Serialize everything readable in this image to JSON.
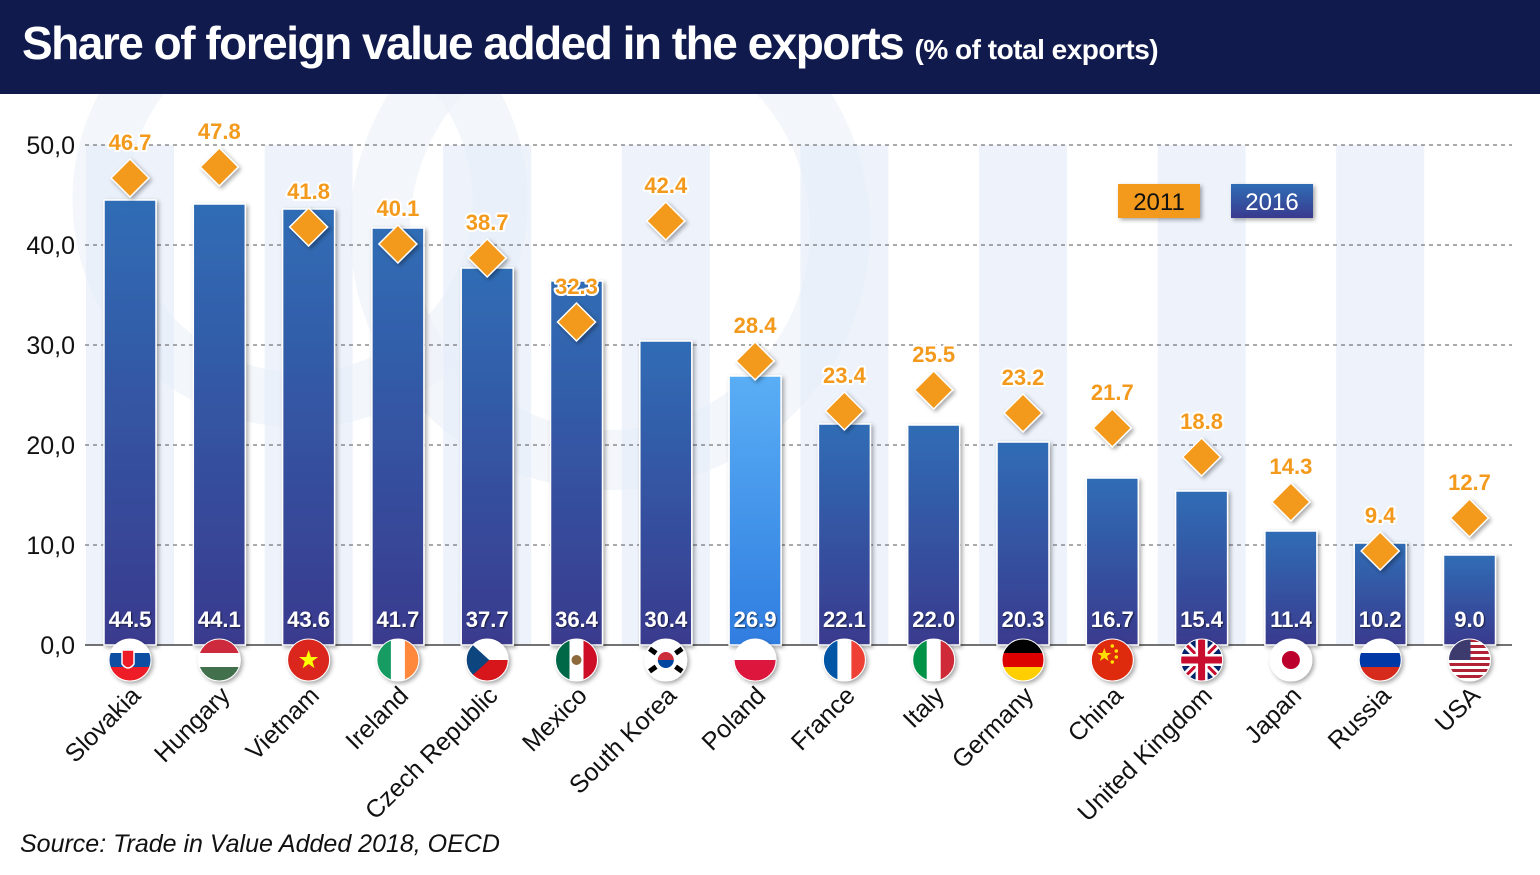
{
  "header": {
    "title": "Share of foreign value added in the exports",
    "subtitle": "(% of total exports)"
  },
  "source": "Source: Trade in Value Added 2018, OECD",
  "colors": {
    "header_bg": "#101a4d",
    "bar_top": "#2f6db5",
    "bar_bottom": "#3a3a8e",
    "bar_highlight_top": "#5aaef5",
    "bar_highlight_bottom": "#2f7de0",
    "marker": "#f39a1c",
    "stripe": "#e7eefa"
  },
  "chart_data": {
    "type": "bar",
    "categories": [
      "Slovakia",
      "Hungary",
      "Vietnam",
      "Ireland",
      "Czech Republic",
      "Mexico",
      "South Korea",
      "Poland",
      "France",
      "Italy",
      "Germany",
      "China",
      "United Kingdom",
      "Japan",
      "Russia",
      "USA"
    ],
    "series": [
      {
        "name": "2016",
        "type": "bar",
        "values": [
          44.5,
          44.1,
          43.6,
          41.7,
          37.7,
          36.4,
          30.4,
          26.9,
          22.1,
          22.0,
          20.3,
          16.7,
          15.4,
          11.4,
          10.2,
          9.0
        ]
      },
      {
        "name": "2011",
        "type": "marker",
        "values": [
          46.7,
          47.8,
          41.8,
          40.1,
          38.7,
          32.3,
          42.4,
          28.4,
          23.4,
          25.5,
          23.2,
          21.7,
          18.8,
          14.3,
          9.4,
          12.7
        ]
      }
    ],
    "bar_labels": [
      "44.5",
      "44.1",
      "43.6",
      "41.7",
      "37.7",
      "36.4",
      "30.4",
      "26.9",
      "22.1",
      "22.0",
      "20.3",
      "16.7",
      "15.4",
      "11.4",
      "10.2",
      "9.0"
    ],
    "marker_labels": [
      "46.7",
      "47.8",
      "41.8",
      "40.1",
      "38.7",
      "32.3",
      "42.4",
      "28.4",
      "23.4",
      "25.5",
      "23.2",
      "21.7",
      "18.8",
      "14.3",
      "9.4",
      "12.7"
    ],
    "ytick_labels": [
      "0,0",
      "10,0",
      "20,0",
      "30,0",
      "40,0",
      "50,0"
    ],
    "ylim": [
      0,
      50
    ],
    "highlight": "Poland",
    "legend": {
      "position": "top-right",
      "items": [
        "2011",
        "2016"
      ]
    },
    "flags": [
      "sk",
      "hu",
      "vn",
      "ie",
      "cz",
      "mx",
      "kr",
      "pl",
      "fr",
      "it",
      "de",
      "cn",
      "gb",
      "jp",
      "ru",
      "us"
    ],
    "grid": true
  }
}
